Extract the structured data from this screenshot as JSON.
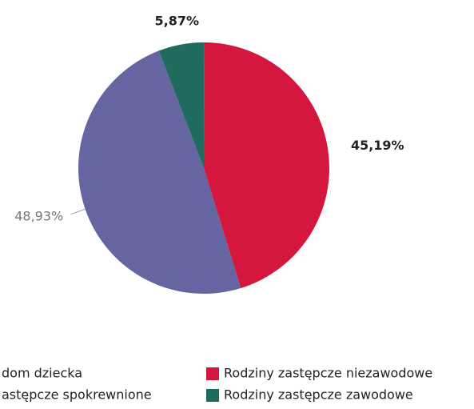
{
  "chart_data": {
    "type": "pie",
    "categories": [
      "dom dziecka",
      "astępcze spokrewnione",
      "Rodziny zastępcze niezawodowe",
      "Rodziny zastępcze zawodowe"
    ],
    "values": [
      0,
      48.93,
      45.19,
      5.87
    ],
    "value_labels": [
      null,
      "48,93%",
      "45,19%",
      "5,87%"
    ],
    "colors": [
      "#e8a33d",
      "#6465a1",
      "#d5173f",
      "#1f6b5d"
    ]
  }
}
